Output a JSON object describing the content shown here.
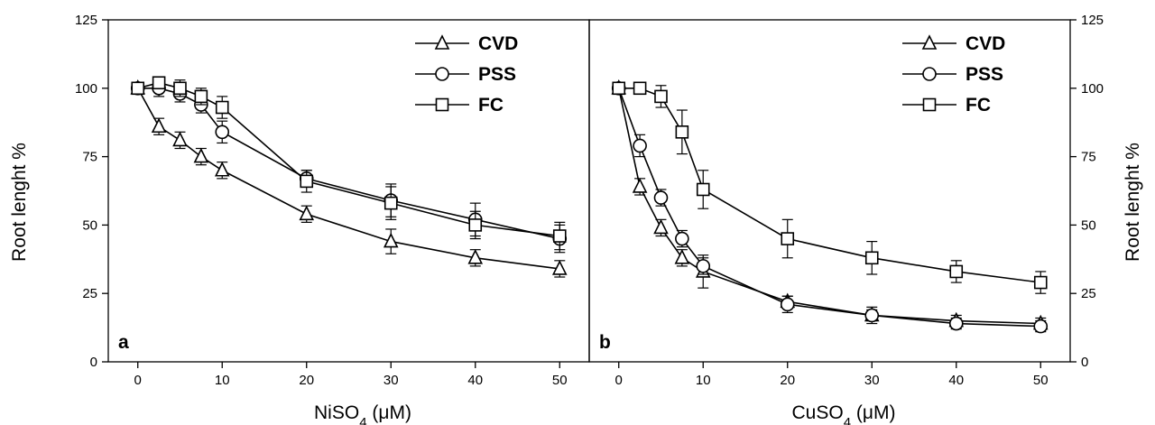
{
  "chart_data": [
    {
      "type": "line",
      "panel_label": "a",
      "x": [
        0,
        2.5,
        5,
        7.5,
        10,
        20,
        30,
        40,
        50
      ],
      "series": [
        {
          "name": "CVD",
          "marker": "triangle",
          "values": [
            100,
            86,
            81,
            75,
            70,
            54,
            44,
            38,
            34
          ],
          "errors": [
            2,
            3,
            3,
            3,
            3,
            3,
            4.5,
            3,
            3
          ]
        },
        {
          "name": "PSS",
          "marker": "circle",
          "values": [
            100,
            100,
            98,
            94,
            84,
            67,
            59,
            52,
            45
          ],
          "errors": [
            1.5,
            3,
            3,
            3,
            4,
            3,
            6,
            6,
            5
          ]
        },
        {
          "name": "FC",
          "marker": "square",
          "values": [
            100,
            102,
            100,
            97,
            93,
            66,
            58,
            50,
            46
          ],
          "errors": [
            1.5,
            2,
            3,
            3,
            4,
            4,
            6,
            5,
            5
          ]
        }
      ],
      "xlabel": "NiSO",
      "xlabel_sub": "4",
      "xlabel_unit": " (μM)",
      "ylabel": "Root lenght %",
      "xticks": [
        "0",
        "10",
        "20",
        "30",
        "40",
        "50"
      ],
      "yticks": [
        "0",
        "25",
        "50",
        "75",
        "100",
        "125"
      ],
      "xlim": [
        -3.5,
        53.5
      ],
      "ylim": [
        0,
        125
      ],
      "legend_position": "top-right"
    },
    {
      "type": "line",
      "panel_label": "b",
      "x": [
        0,
        2.5,
        5,
        7.5,
        10,
        20,
        30,
        40,
        50
      ],
      "series": [
        {
          "name": "CVD",
          "marker": "triangle",
          "values": [
            100,
            64,
            49,
            38,
            33,
            22,
            17,
            15,
            14
          ],
          "errors": [
            1.5,
            3,
            3,
            3,
            6,
            2,
            3,
            2,
            2
          ]
        },
        {
          "name": "PSS",
          "marker": "circle",
          "values": [
            100,
            79,
            60,
            45,
            35,
            21,
            17,
            14,
            13
          ],
          "errors": [
            1.5,
            4,
            3,
            3,
            3,
            3,
            2,
            2,
            2
          ]
        },
        {
          "name": "FC",
          "marker": "square",
          "values": [
            100,
            100,
            97,
            84,
            63,
            45,
            38,
            33,
            29
          ],
          "errors": [
            1.5,
            1.5,
            4,
            8,
            7,
            7,
            6,
            4,
            4
          ]
        }
      ],
      "xlabel": "CuSO",
      "xlabel_sub": "4",
      "xlabel_unit": " (μM)",
      "ylabel": "Root lenght %",
      "xticks": [
        "0",
        "10",
        "20",
        "30",
        "40",
        "50"
      ],
      "yticks": [
        "0",
        "25",
        "50",
        "75",
        "100",
        "125"
      ],
      "xlim": [
        -3.5,
        53.5
      ],
      "ylim": [
        0,
        125
      ],
      "legend_position": "top-right"
    }
  ]
}
